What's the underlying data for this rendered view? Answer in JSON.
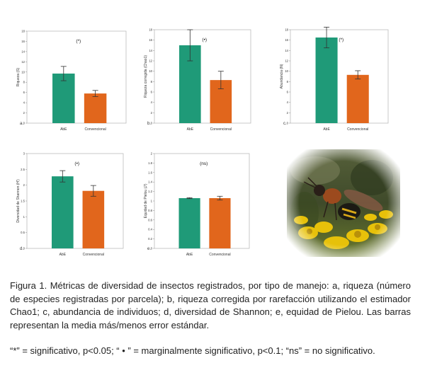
{
  "colors": {
    "abe": "#1f9a78",
    "convencional": "#e1661c",
    "frame": "#bbbbbb",
    "errorbar": "#333333"
  },
  "chart_data": [
    {
      "type": "bar",
      "panel": "a.",
      "annotation": "(*)",
      "ylabel": "Riqueza (S)",
      "ylim": [
        0,
        18
      ],
      "yticks": [
        0,
        2,
        4,
        6,
        8,
        10,
        12,
        14,
        16,
        18
      ],
      "categories": [
        "AbE",
        "Convencional"
      ],
      "values": [
        9.7,
        5.8
      ],
      "errors": [
        1.4,
        0.6
      ]
    },
    {
      "type": "bar",
      "panel": "b.",
      "annotation": "(•)",
      "ylabel": "Riqueza corregida (Chao1)",
      "ylim": [
        0,
        18
      ],
      "yticks": [
        0,
        2,
        4,
        6,
        8,
        10,
        12,
        14,
        16,
        18
      ],
      "categories": [
        "AbE",
        "Convencional"
      ],
      "values": [
        15.0,
        8.3
      ],
      "errors": [
        3.0,
        1.7
      ]
    },
    {
      "type": "bar",
      "panel": "c.",
      "annotation": "(*)",
      "ylabel": "Abundancia (N)",
      "ylim": [
        0,
        18
      ],
      "yticks": [
        0,
        2,
        4,
        6,
        8,
        10,
        12,
        14,
        16,
        18
      ],
      "categories": [
        "AbE",
        "Convencional"
      ],
      "values": [
        16.5,
        9.3
      ],
      "errors": [
        2.0,
        0.8
      ]
    },
    {
      "type": "bar",
      "panel": "d.",
      "annotation": "(•)",
      "ylabel": "Diversidad de Shannon (H')",
      "ylim": [
        0,
        3.0
      ],
      "yticks": [
        0,
        0.5,
        1.0,
        1.5,
        2.0,
        2.5,
        3.0
      ],
      "categories": [
        "AbE",
        "Convencional"
      ],
      "values": [
        2.28,
        1.82
      ],
      "errors": [
        0.18,
        0.17
      ]
    },
    {
      "type": "bar",
      "panel": "e.",
      "annotation": "(ns)",
      "ylabel": "Equidad de Pielou (J')",
      "ylim": [
        0,
        2.0
      ],
      "yticks": [
        0,
        0.2,
        0.4,
        0.6,
        0.8,
        1.0,
        1.2,
        1.4,
        1.6,
        1.8,
        2.0
      ],
      "categories": [
        "AbE",
        "Convencional"
      ],
      "values": [
        1.06,
        1.06
      ],
      "errors": [
        0.01,
        0.04
      ]
    }
  ],
  "caption": "Figura 1. Métricas de diversidad de insectos registrados, por tipo de manejo: a, riqueza (número de especies registradas por parcela); b, riqueza corregida por rarefacción utilizando el estimador Chao1; c, abundancia de individuos; d, diversidad de Shannon; e, equidad de Pielou.  Las barras representan la media más/menos error estándar.",
  "footnote": "“*” = significativo, p<0.05; “ • ” = marginalmente significativo, p<0.1; “ns” = no significativo."
}
